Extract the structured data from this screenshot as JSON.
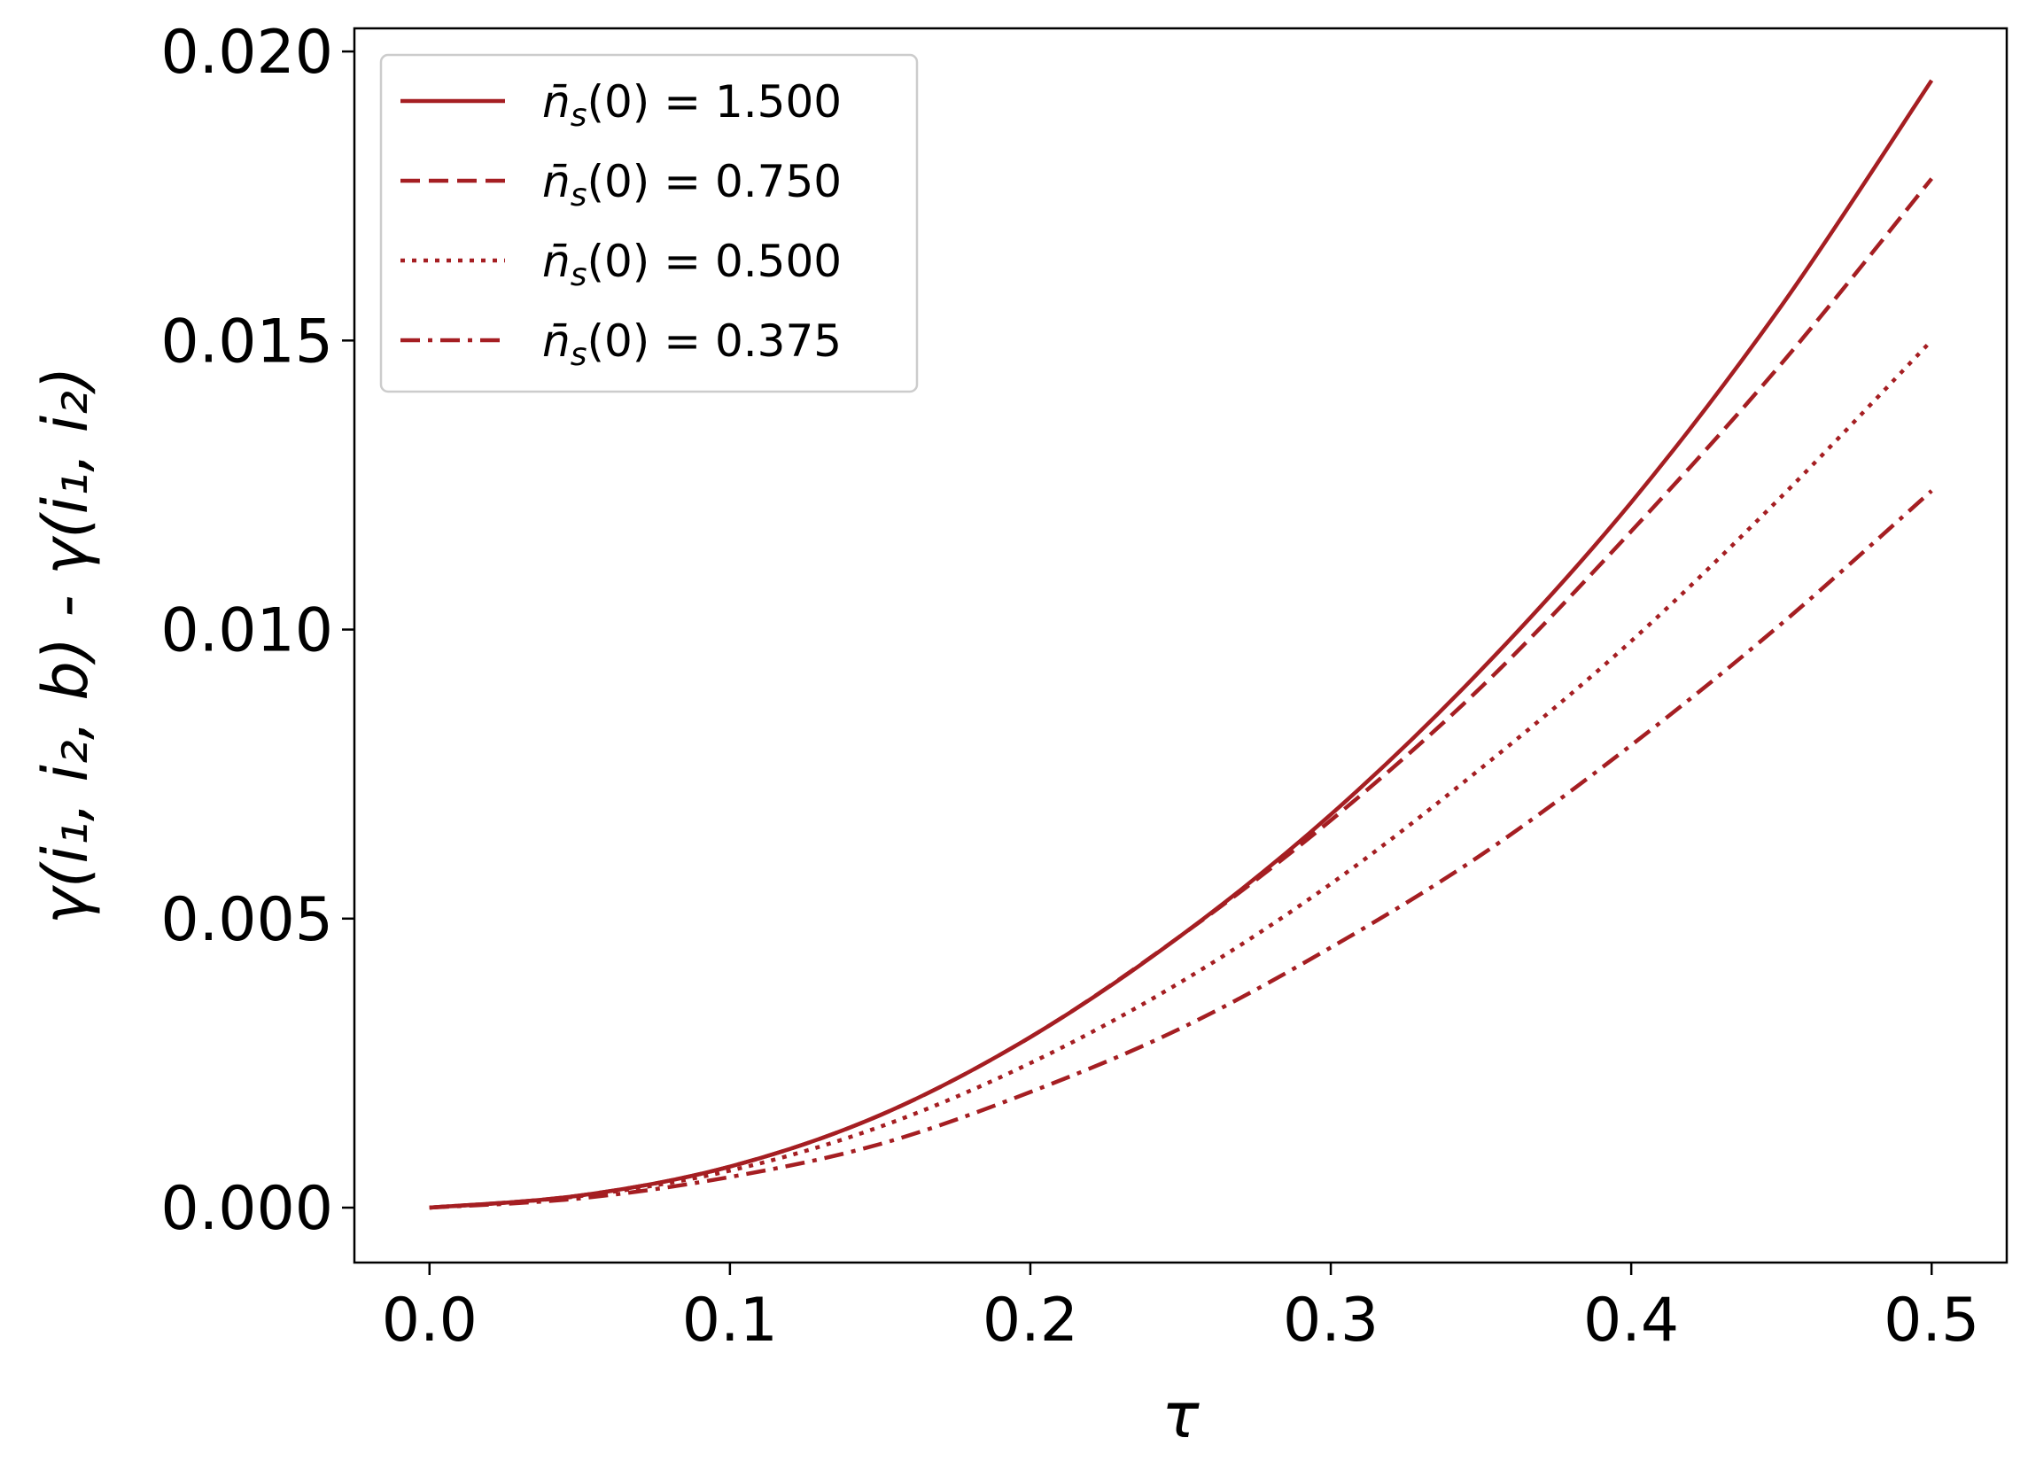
{
  "chart_data": {
    "type": "line",
    "title": "",
    "xlabel": "τ",
    "ylabel": "γ(i₁, i₂, b) - γ(i₁, i₂)",
    "xlim": [
      -0.025,
      0.525
    ],
    "ylim": [
      -0.00095,
      0.0204
    ],
    "xticks": [
      0.0,
      0.1,
      0.2,
      0.3,
      0.4,
      0.5
    ],
    "xtick_labels": [
      "0.0",
      "0.1",
      "0.2",
      "0.3",
      "0.4",
      "0.5"
    ],
    "yticks": [
      0.0,
      0.005,
      0.01,
      0.015,
      0.02
    ],
    "ytick_labels": [
      "0.000",
      "0.005",
      "0.010",
      "0.015",
      "0.020"
    ],
    "grid": false,
    "legend_position": "top-left",
    "line_color": "#a51e22",
    "series": [
      {
        "name": "1.500",
        "style": "solid",
        "x": [
          0.0,
          0.05,
          0.1,
          0.15,
          0.2,
          0.25,
          0.3,
          0.35,
          0.4,
          0.45,
          0.5
        ],
        "y": [
          0.0,
          0.00021,
          0.00071,
          0.0016,
          0.00295,
          0.0047,
          0.0068,
          0.0093,
          0.0122,
          0.0156,
          0.0195
        ]
      },
      {
        "name": "0.750",
        "style": "dashed",
        "x": [
          0.0,
          0.05,
          0.1,
          0.15,
          0.2,
          0.25,
          0.3,
          0.35,
          0.4,
          0.45,
          0.5
        ],
        "y": [
          0.0,
          0.00021,
          0.00071,
          0.0016,
          0.00295,
          0.0047,
          0.0067,
          0.009,
          0.0117,
          0.0146,
          0.0178
        ]
      },
      {
        "name": "0.500",
        "style": "dotted",
        "x": [
          0.0,
          0.05,
          0.1,
          0.15,
          0.2,
          0.25,
          0.3,
          0.35,
          0.4,
          0.45,
          0.5
        ],
        "y": [
          0.0,
          0.0002,
          0.00064,
          0.0014,
          0.0025,
          0.0039,
          0.0056,
          0.0076,
          0.0098,
          0.0123,
          0.015
        ]
      },
      {
        "name": "0.375",
        "style": "dashdot",
        "x": [
          0.0,
          0.05,
          0.1,
          0.15,
          0.2,
          0.25,
          0.3,
          0.35,
          0.4,
          0.45,
          0.5
        ],
        "y": [
          0.0,
          0.00016,
          0.00053,
          0.0011,
          0.002,
          0.0031,
          0.0045,
          0.0061,
          0.008,
          0.0101,
          0.0124
        ]
      }
    ]
  }
}
